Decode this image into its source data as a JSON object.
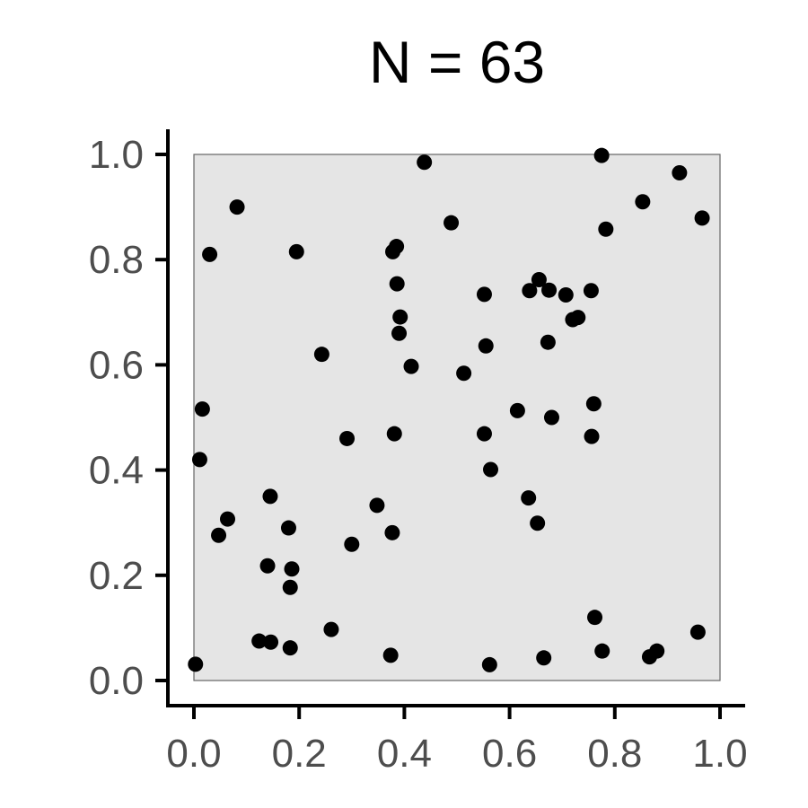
{
  "chart_data": {
    "type": "scatter",
    "title": "N = 63",
    "xlabel": "",
    "ylabel": "",
    "xlim": [
      0,
      1
    ],
    "ylim": [
      0,
      1
    ],
    "x_ticks": [
      "0.0",
      "0.2",
      "0.4",
      "0.6",
      "0.8",
      "1.0"
    ],
    "y_ticks": [
      "0.0",
      "0.2",
      "0.4",
      "0.6",
      "0.8",
      "1.0"
    ],
    "grid": false,
    "colors": {
      "points": "#000000",
      "panel": "#e5e5e5",
      "axis": "#000000",
      "tick_label": "#4d4d4d"
    },
    "series": [
      {
        "points": [
          [
            0.003,
            0.031
          ],
          [
            0.011,
            0.42
          ],
          [
            0.016,
            0.516
          ],
          [
            0.03,
            0.81
          ],
          [
            0.047,
            0.276
          ],
          [
            0.064,
            0.307
          ],
          [
            0.082,
            0.9
          ],
          [
            0.124,
            0.075
          ],
          [
            0.14,
            0.218
          ],
          [
            0.145,
            0.35
          ],
          [
            0.146,
            0.073
          ],
          [
            0.18,
            0.29
          ],
          [
            0.183,
            0.062
          ],
          [
            0.183,
            0.177
          ],
          [
            0.186,
            0.212
          ],
          [
            0.195,
            0.815
          ],
          [
            0.243,
            0.62
          ],
          [
            0.261,
            0.097
          ],
          [
            0.291,
            0.46
          ],
          [
            0.3,
            0.259
          ],
          [
            0.348,
            0.333
          ],
          [
            0.374,
            0.048
          ],
          [
            0.377,
            0.281
          ],
          [
            0.378,
            0.815
          ],
          [
            0.381,
            0.469
          ],
          [
            0.385,
            0.825
          ],
          [
            0.386,
            0.754
          ],
          [
            0.39,
            0.66
          ],
          [
            0.392,
            0.691
          ],
          [
            0.413,
            0.597
          ],
          [
            0.438,
            0.985
          ],
          [
            0.489,
            0.87
          ],
          [
            0.513,
            0.584
          ],
          [
            0.552,
            0.469
          ],
          [
            0.552,
            0.734
          ],
          [
            0.555,
            0.636
          ],
          [
            0.564,
            0.401
          ],
          [
            0.562,
            0.03
          ],
          [
            0.615,
            0.513
          ],
          [
            0.636,
            0.347
          ],
          [
            0.638,
            0.741
          ],
          [
            0.653,
            0.299
          ],
          [
            0.656,
            0.762
          ],
          [
            0.665,
            0.043
          ],
          [
            0.673,
            0.643
          ],
          [
            0.675,
            0.742
          ],
          [
            0.68,
            0.5
          ],
          [
            0.707,
            0.733
          ],
          [
            0.72,
            0.686
          ],
          [
            0.73,
            0.69
          ],
          [
            0.755,
            0.741
          ],
          [
            0.756,
            0.464
          ],
          [
            0.76,
            0.526
          ],
          [
            0.762,
            0.12
          ],
          [
            0.775,
            0.998
          ],
          [
            0.776,
            0.056
          ],
          [
            0.783,
            0.858
          ],
          [
            0.853,
            0.91
          ],
          [
            0.866,
            0.045
          ],
          [
            0.88,
            0.056
          ],
          [
            0.923,
            0.965
          ],
          [
            0.958,
            0.092
          ],
          [
            0.966,
            0.879
          ]
        ]
      }
    ]
  }
}
